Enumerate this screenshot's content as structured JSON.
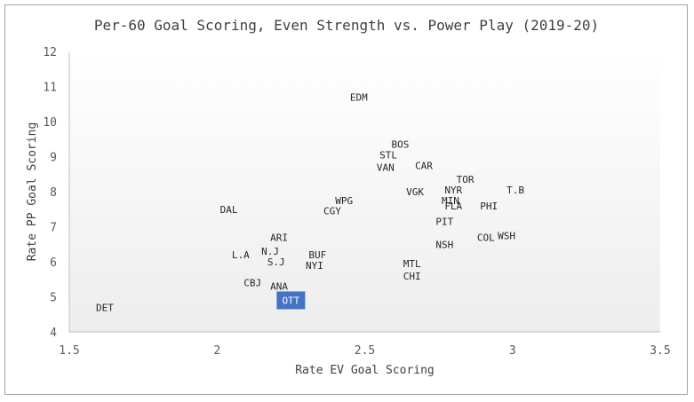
{
  "chart_data": {
    "type": "scatter",
    "title": "Per-60 Goal Scoring, Even Strength vs. Power Play (2019-20)",
    "xlabel": "Rate EV Goal Scoring",
    "ylabel": "Rate PP Goal Scoring",
    "xlim": [
      1.5,
      3.5
    ],
    "ylim": [
      4,
      12
    ],
    "x_ticks": [
      "1.5",
      "2",
      "2.5",
      "3",
      "3.5"
    ],
    "y_ticks": [
      "4",
      "5",
      "6",
      "7",
      "8",
      "9",
      "10",
      "11",
      "12"
    ],
    "grid": false,
    "background": "light gradient",
    "highlight_color": "#4472c4",
    "points": [
      {
        "label": "DET",
        "x": 1.62,
        "y": 4.7
      },
      {
        "label": "ANA",
        "x": 2.21,
        "y": 5.3
      },
      {
        "label": "OTT",
        "x": 2.25,
        "y": 4.9,
        "highlighted": true
      },
      {
        "label": "CBJ",
        "x": 2.12,
        "y": 5.4
      },
      {
        "label": "S.J",
        "x": 2.2,
        "y": 6.0
      },
      {
        "label": "N.J",
        "x": 2.18,
        "y": 6.3
      },
      {
        "label": "L.A",
        "x": 2.08,
        "y": 6.2
      },
      {
        "label": "ARI",
        "x": 2.21,
        "y": 6.7
      },
      {
        "label": "BUF",
        "x": 2.34,
        "y": 6.2
      },
      {
        "label": "NYI",
        "x": 2.33,
        "y": 5.9
      },
      {
        "label": "DAL",
        "x": 2.04,
        "y": 7.5
      },
      {
        "label": "CGY",
        "x": 2.39,
        "y": 7.45
      },
      {
        "label": "WPG",
        "x": 2.43,
        "y": 7.75
      },
      {
        "label": "EDM",
        "x": 2.48,
        "y": 10.7
      },
      {
        "label": "BOS",
        "x": 2.62,
        "y": 9.35
      },
      {
        "label": "STL",
        "x": 2.58,
        "y": 9.05
      },
      {
        "label": "VAN",
        "x": 2.57,
        "y": 8.7
      },
      {
        "label": "CAR",
        "x": 2.7,
        "y": 8.75
      },
      {
        "label": "VGK",
        "x": 2.67,
        "y": 8.0
      },
      {
        "label": "TOR",
        "x": 2.84,
        "y": 8.35
      },
      {
        "label": "NYR",
        "x": 2.8,
        "y": 8.05
      },
      {
        "label": "T.B",
        "x": 3.01,
        "y": 8.05
      },
      {
        "label": "MIN",
        "x": 2.79,
        "y": 7.75
      },
      {
        "label": "FLA",
        "x": 2.8,
        "y": 7.6
      },
      {
        "label": "PHI",
        "x": 2.92,
        "y": 7.6
      },
      {
        "label": "PIT",
        "x": 2.77,
        "y": 7.15
      },
      {
        "label": "NSH",
        "x": 2.77,
        "y": 6.5
      },
      {
        "label": "COL",
        "x": 2.91,
        "y": 6.7
      },
      {
        "label": "WSH",
        "x": 2.98,
        "y": 6.75
      },
      {
        "label": "MTL",
        "x": 2.66,
        "y": 5.95
      },
      {
        "label": "CHI",
        "x": 2.66,
        "y": 5.6
      }
    ]
  }
}
